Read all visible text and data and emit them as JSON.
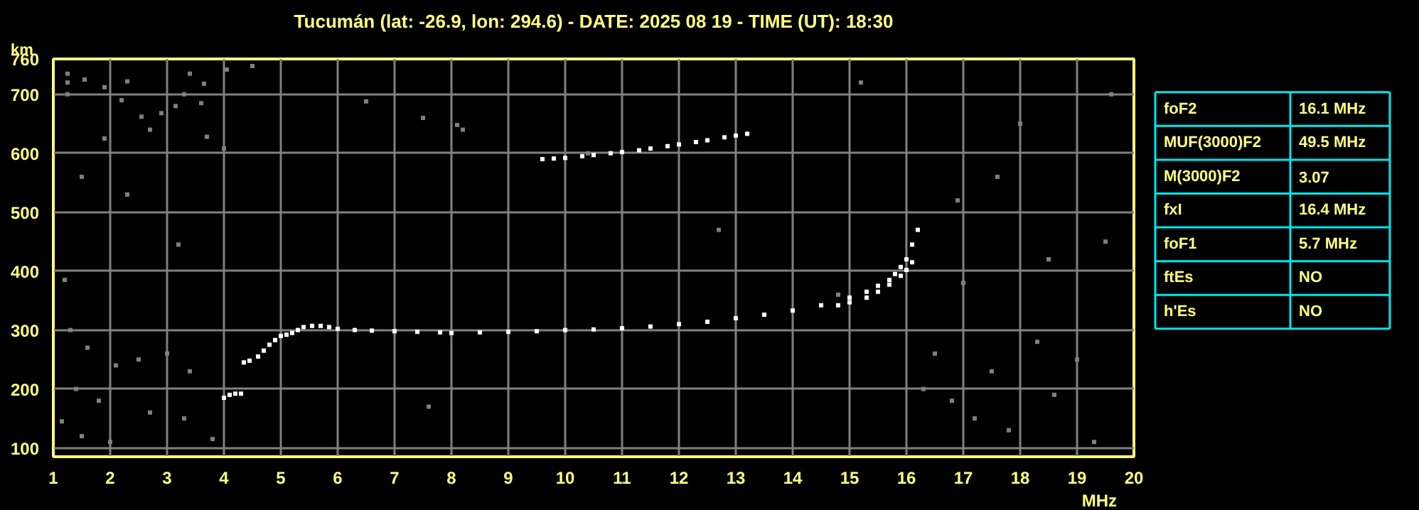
{
  "chart_data": [
    {
      "type": "scatter",
      "title": "Tucumán (lat: -26.9, lon: 294.6) - DATE: 2025 08 19 - TIME (UT): 18:30",
      "xlabel": "MHz",
      "ylabel": "km",
      "xlim": [
        1,
        20
      ],
      "ylim": [
        85,
        760
      ],
      "xticks": [
        1,
        2,
        3,
        4,
        5,
        6,
        7,
        8,
        9,
        10,
        11,
        12,
        13,
        14,
        15,
        16,
        17,
        18,
        19,
        20
      ],
      "yticks": [
        100,
        200,
        300,
        400,
        500,
        600,
        700,
        760
      ],
      "grid": true,
      "marker": "square",
      "series": [
        {
          "color": "#808080",
          "x": [
            1.25,
            1.25,
            1.55,
            1.9,
            2.3,
            3.3,
            3.4,
            3.65,
            4.05,
            4.5,
            1.25,
            2.2,
            2.55,
            2.9,
            3.15,
            3.6,
            6.5,
            7.5,
            8.1,
            1.9,
            2.7,
            3.7,
            4.0,
            1.5,
            2.3,
            3.2,
            1.2,
            1.3,
            1.6,
            2.1,
            2.5,
            3.0,
            3.4,
            1.4,
            1.8,
            2.7,
            3.3,
            1.15,
            1.5,
            2.0,
            3.8,
            7.6,
            16.3,
            16.8,
            17.2,
            17.8,
            18.6,
            19.3,
            16.5,
            17.5,
            18.3,
            19.0,
            17.0,
            18.5,
            19.5,
            16.9,
            17.6,
            18.0,
            19.6,
            15.2,
            10.4,
            12.7,
            14.8,
            8.2
          ],
          "values": [
            735,
            720,
            725,
            712,
            722,
            700,
            735,
            718,
            742,
            748,
            700,
            690,
            662,
            668,
            680,
            685,
            688,
            660,
            648,
            625,
            640,
            628,
            608,
            560,
            530,
            445,
            385,
            300,
            270,
            240,
            250,
            260,
            230,
            200,
            180,
            160,
            150,
            145,
            120,
            110,
            115,
            170,
            200,
            180,
            150,
            130,
            190,
            110,
            260,
            230,
            280,
            250,
            380,
            420,
            450,
            520,
            560,
            650,
            700,
            720,
            600,
            470,
            360,
            640
          ]
        },
        {
          "color": "#ffffff",
          "x": [
            4.0,
            4.1,
            4.2,
            4.3,
            4.35,
            4.45,
            4.6,
            4.7,
            4.8,
            4.9,
            5.0,
            5.1,
            5.2,
            5.3,
            5.4,
            5.55,
            5.7,
            5.85,
            6.0,
            6.3,
            6.6,
            7.0,
            7.4,
            7.8,
            8.0,
            8.5,
            9.0,
            9.5,
            10.0,
            10.5,
            11.0,
            11.5,
            12.0,
            12.5,
            13.0,
            13.5,
            14.0,
            14.5,
            15.0,
            15.3,
            15.5,
            15.7,
            15.8,
            15.9,
            16.0,
            16.1,
            16.2
          ],
          "values": [
            185,
            190,
            192,
            192,
            245,
            248,
            255,
            265,
            275,
            283,
            290,
            292,
            295,
            300,
            305,
            307,
            307,
            305,
            302,
            300,
            299,
            298,
            297,
            296,
            295,
            296,
            297,
            298,
            300,
            301,
            303,
            306,
            310,
            314,
            320,
            326,
            333,
            342,
            355,
            365,
            375,
            385,
            395,
            407,
            420,
            445,
            470
          ]
        },
        {
          "color": "#ffffff",
          "x": [
            14.8,
            15.0,
            15.3,
            15.5,
            15.7,
            15.9,
            16.0,
            16.1
          ],
          "values": [
            342,
            347,
            355,
            365,
            377,
            392,
            402,
            415
          ]
        },
        {
          "color": "#ffffff",
          "x": [
            9.6,
            9.8,
            10.0,
            10.3,
            10.5,
            10.8,
            11.0,
            11.3,
            11.5,
            11.8,
            12.0,
            12.3,
            12.5,
            12.8,
            13.0,
            13.2
          ],
          "values": [
            590,
            591,
            592,
            595,
            597,
            600,
            602,
            605,
            608,
            612,
            615,
            619,
            622,
            627,
            630,
            633
          ]
        }
      ]
    },
    {
      "type": "other",
      "annotations": [
        "foF2",
        "16.1 MHz",
        "MUF(3000)F2",
        "49.5 MHz",
        "M(3000)F2",
        "3.07",
        "fxI",
        "16.4 MHz",
        "foF1",
        "5.7 MHz",
        "ftEs",
        "NO",
        "h'Es",
        "NO"
      ]
    }
  ]
}
